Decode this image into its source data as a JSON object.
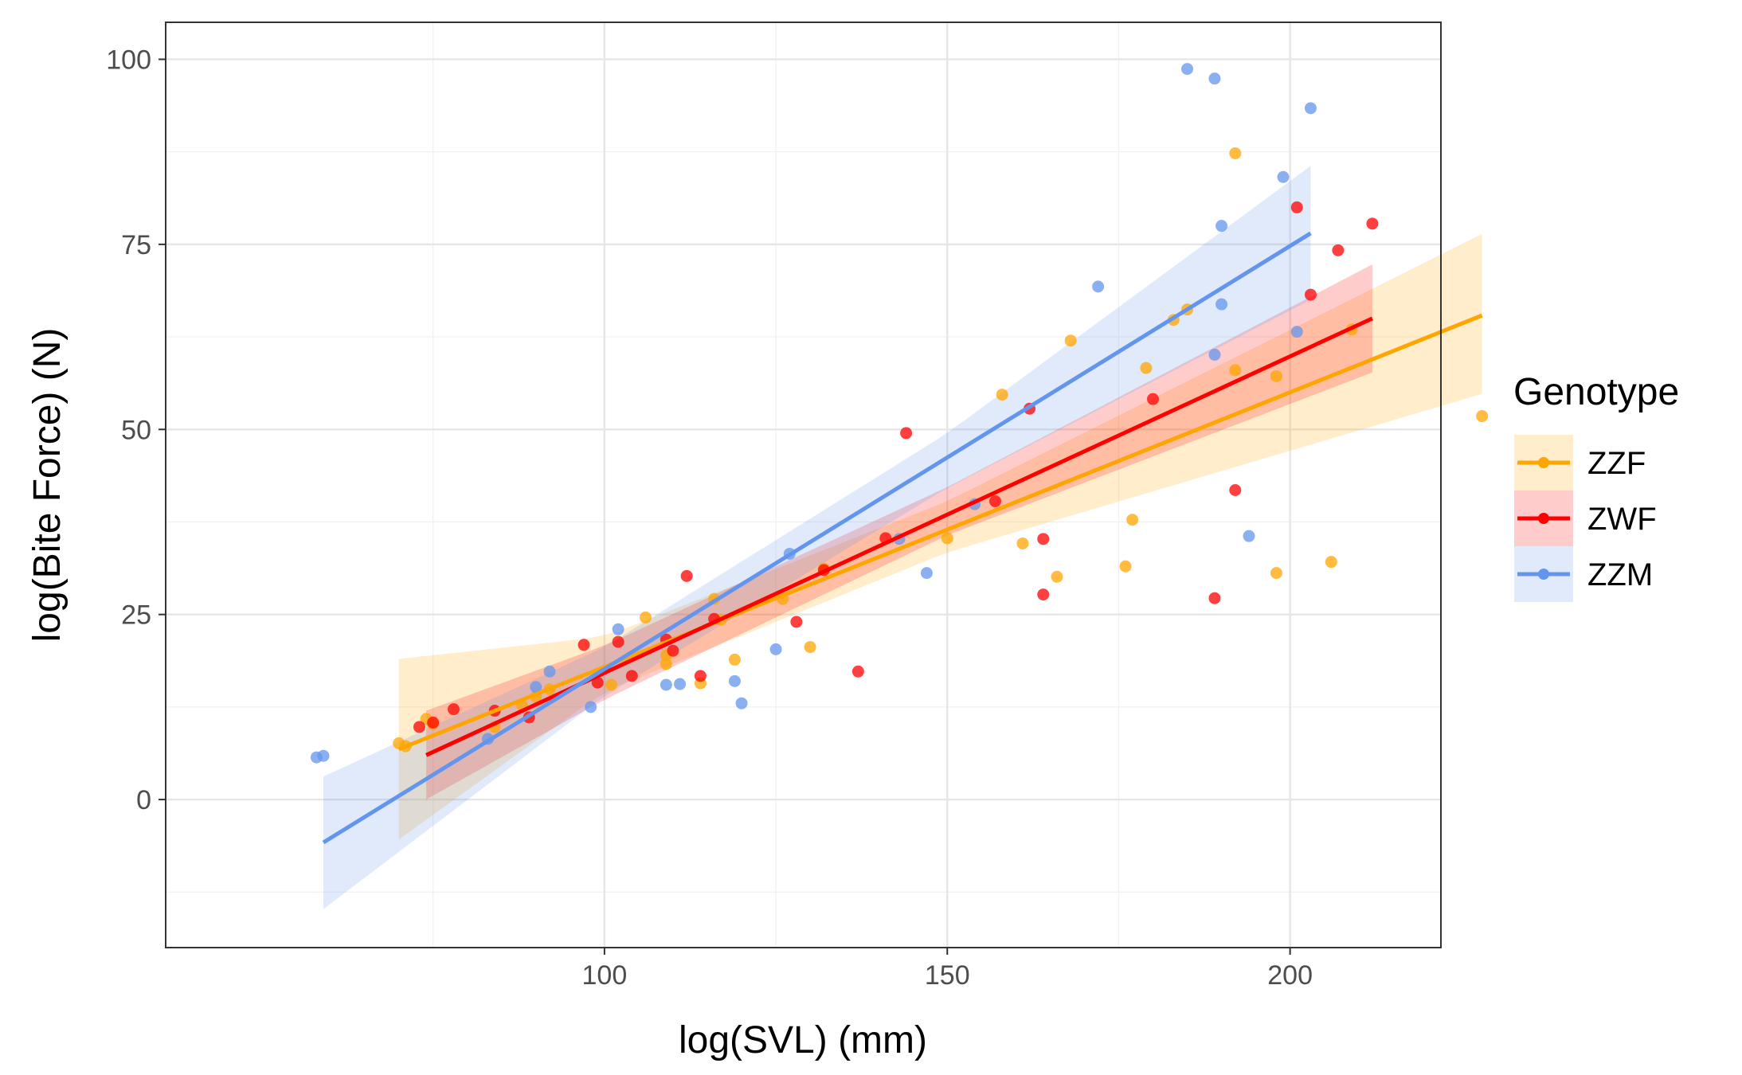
{
  "chart_data": {
    "type": "scatter",
    "title": "",
    "xlabel": "log(SVL) (mm)",
    "ylabel": "log(Bite Force) (N)",
    "xlim": [
      36,
      222
    ],
    "ylim": [
      -20,
      105
    ],
    "x_ticks": [
      100,
      150,
      200
    ],
    "y_ticks": [
      0,
      25,
      50,
      75,
      100
    ],
    "grid": true,
    "legend": {
      "title": "Genotype",
      "position": "right"
    },
    "series": [
      {
        "name": "ZZF",
        "color": "#FFA500",
        "points": [
          [
            70,
            7.6
          ],
          [
            71,
            7.2
          ],
          [
            74,
            10.9
          ],
          [
            75,
            10.2
          ],
          [
            84,
            9.8
          ],
          [
            88,
            12.7
          ],
          [
            90,
            13.9
          ],
          [
            92,
            14.9
          ],
          [
            101,
            15.5
          ],
          [
            106,
            24.6
          ],
          [
            109,
            18.3
          ],
          [
            109,
            19.5
          ],
          [
            114,
            15.7
          ],
          [
            116,
            27.1
          ],
          [
            117,
            24.3
          ],
          [
            119,
            18.9
          ],
          [
            126,
            27.1
          ],
          [
            130,
            20.6
          ],
          [
            132,
            31.2
          ],
          [
            150,
            35.3
          ],
          [
            158,
            54.7
          ],
          [
            161,
            34.6
          ],
          [
            166,
            30.1
          ],
          [
            168,
            62.0
          ],
          [
            176,
            31.5
          ],
          [
            177,
            37.8
          ],
          [
            179,
            58.3
          ],
          [
            183,
            64.8
          ],
          [
            185,
            66.2
          ],
          [
            192,
            87.3
          ],
          [
            192,
            58.0
          ],
          [
            198,
            57.2
          ],
          [
            198,
            30.6
          ],
          [
            206,
            32.1
          ],
          [
            209,
            63.5
          ],
          [
            228,
            51.8
          ]
        ],
        "fit": {
          "x": [
            70,
            228
          ],
          "y": [
            6.8,
            65.4
          ]
        },
        "ribbon": {
          "x": [
            70,
            100,
            150,
            228
          ],
          "lower": [
            -5.4,
            14.6,
            33.4,
            54.8
          ],
          "upper": [
            19.0,
            22.0,
            40.3,
            76.4
          ]
        }
      },
      {
        "name": "ZWF",
        "color": "#FF0000",
        "points": [
          [
            73,
            9.8
          ],
          [
            75,
            10.4
          ],
          [
            78,
            12.2
          ],
          [
            84,
            12.0
          ],
          [
            89,
            11.1
          ],
          [
            97,
            20.9
          ],
          [
            99,
            15.8
          ],
          [
            102,
            21.3
          ],
          [
            104,
            16.7
          ],
          [
            109,
            21.6
          ],
          [
            110,
            20.1
          ],
          [
            112,
            30.2
          ],
          [
            114,
            16.7
          ],
          [
            116,
            24.4
          ],
          [
            128,
            24.0
          ],
          [
            132,
            31.0
          ],
          [
            137,
            17.3
          ],
          [
            141,
            35.3
          ],
          [
            144,
            49.5
          ],
          [
            157,
            40.3
          ],
          [
            162,
            52.8
          ],
          [
            164,
            27.7
          ],
          [
            164,
            35.2
          ],
          [
            180,
            54.1
          ],
          [
            189,
            27.2
          ],
          [
            192,
            41.8
          ],
          [
            201,
            80.0
          ],
          [
            203,
            68.2
          ],
          [
            207,
            74.2
          ],
          [
            212,
            77.8
          ]
        ],
        "fit": {
          "x": [
            74,
            212
          ],
          "y": [
            6.0,
            65.0
          ]
        },
        "ribbon": {
          "x": [
            74,
            100,
            150,
            212
          ],
          "lower": [
            0.0,
            13.5,
            35.7,
            57.7
          ],
          "upper": [
            12.0,
            20.8,
            42.2,
            72.3
          ]
        }
      },
      {
        "name": "ZZM",
        "color": "#6495ED",
        "points": [
          [
            58,
            5.7
          ],
          [
            59,
            5.9
          ],
          [
            83,
            8.2
          ],
          [
            90,
            15.2
          ],
          [
            92,
            17.3
          ],
          [
            98,
            12.5
          ],
          [
            102,
            23.0
          ],
          [
            109,
            15.5
          ],
          [
            111,
            15.6
          ],
          [
            119,
            16.0
          ],
          [
            120,
            13.0
          ],
          [
            125,
            20.3
          ],
          [
            127,
            33.2
          ],
          [
            143,
            35.2
          ],
          [
            147,
            30.6
          ],
          [
            154,
            39.9
          ],
          [
            172,
            69.3
          ],
          [
            185,
            98.7
          ],
          [
            189,
            97.4
          ],
          [
            189,
            60.1
          ],
          [
            190,
            66.9
          ],
          [
            190,
            77.5
          ],
          [
            194,
            35.6
          ],
          [
            199,
            84.1
          ],
          [
            201,
            63.2
          ],
          [
            203,
            93.4
          ]
        ],
        "fit": {
          "x": [
            59,
            203
          ],
          "y": [
            -5.8,
            76.5
          ]
        },
        "ribbon": {
          "x": [
            59,
            100,
            150,
            203
          ],
          "lower": [
            -14.8,
            14.0,
            42.1,
            67.5
          ],
          "upper": [
            3.1,
            20.6,
            49.5,
            85.6
          ]
        }
      }
    ]
  }
}
